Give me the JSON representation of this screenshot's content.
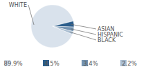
{
  "chart_data": {
    "type": "pie",
    "categories": [
      "WHITE",
      "ASIAN",
      "HISPANIC",
      "BLACK"
    ],
    "values": [
      89.9,
      4.5,
      3.4,
      2.2
    ],
    "value_labels": [
      "89.9%",
      "4.5%",
      "3.4%",
      "2.2%"
    ],
    "colors": [
      "#d9e2ec",
      "#2b5d8b",
      "#7392b0",
      "#a9bdd1"
    ],
    "legend": "bottom"
  }
}
